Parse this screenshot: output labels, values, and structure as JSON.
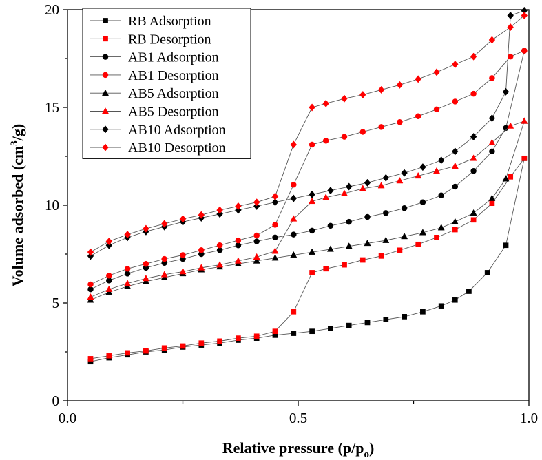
{
  "chart_data": {
    "type": "line",
    "xlabel": "Relative pressure (p/p",
    "xlabel_subscript": "o",
    "xlabel_suffix": ")",
    "ylabel": "Volume adsorbed (cm",
    "ylabel_superscript": "3",
    "ylabel_suffix": "/g)",
    "xlim": [
      0.0,
      1.0
    ],
    "ylim": [
      0,
      20
    ],
    "x_ticks": [
      "0.0",
      "0.5",
      "1.0"
    ],
    "y_ticks": [
      "0",
      "5",
      "10",
      "15",
      "20"
    ],
    "legend_position": "top-left",
    "series": [
      {
        "name": "RB Adsorption",
        "marker": "square",
        "color": "#000000",
        "x": [
          0.05,
          0.09,
          0.13,
          0.17,
          0.21,
          0.25,
          0.29,
          0.33,
          0.37,
          0.41,
          0.45,
          0.49,
          0.53,
          0.57,
          0.61,
          0.65,
          0.69,
          0.73,
          0.77,
          0.81,
          0.84,
          0.87,
          0.91,
          0.95,
          0.99
        ],
        "y": [
          2.0,
          2.2,
          2.35,
          2.5,
          2.6,
          2.75,
          2.85,
          2.95,
          3.1,
          3.2,
          3.35,
          3.45,
          3.55,
          3.7,
          3.85,
          4.0,
          4.15,
          4.3,
          4.55,
          4.85,
          5.15,
          5.6,
          6.55,
          7.95,
          12.4
        ]
      },
      {
        "name": "RB Desorption",
        "marker": "square",
        "color": "#ff0000",
        "x": [
          0.99,
          0.96,
          0.92,
          0.88,
          0.84,
          0.8,
          0.76,
          0.72,
          0.68,
          0.64,
          0.6,
          0.56,
          0.53,
          0.49,
          0.45,
          0.41,
          0.37,
          0.33,
          0.29,
          0.25,
          0.21,
          0.17,
          0.13,
          0.09,
          0.05
        ],
        "y": [
          12.4,
          11.45,
          10.1,
          9.25,
          8.75,
          8.35,
          8.0,
          7.7,
          7.4,
          7.2,
          6.95,
          6.75,
          6.55,
          4.55,
          3.55,
          3.3,
          3.2,
          3.05,
          2.95,
          2.8,
          2.7,
          2.55,
          2.45,
          2.3,
          2.15
        ]
      },
      {
        "name": "AB1 Adsorption",
        "marker": "circle",
        "color": "#000000",
        "x": [
          0.05,
          0.09,
          0.13,
          0.17,
          0.21,
          0.25,
          0.29,
          0.33,
          0.37,
          0.41,
          0.45,
          0.49,
          0.53,
          0.57,
          0.61,
          0.65,
          0.69,
          0.73,
          0.77,
          0.81,
          0.84,
          0.88,
          0.92,
          0.95,
          0.99
        ],
        "y": [
          5.7,
          6.15,
          6.5,
          6.8,
          7.05,
          7.25,
          7.5,
          7.7,
          7.95,
          8.15,
          8.35,
          8.5,
          8.7,
          8.95,
          9.15,
          9.4,
          9.6,
          9.85,
          10.15,
          10.5,
          10.95,
          11.75,
          12.75,
          13.95,
          17.9
        ]
      },
      {
        "name": "AB1 Desorption",
        "marker": "circle",
        "color": "#ff0000",
        "x": [
          0.99,
          0.96,
          0.92,
          0.88,
          0.84,
          0.8,
          0.76,
          0.72,
          0.68,
          0.64,
          0.6,
          0.56,
          0.53,
          0.49,
          0.45,
          0.41,
          0.37,
          0.33,
          0.29,
          0.25,
          0.21,
          0.17,
          0.13,
          0.09,
          0.05
        ],
        "y": [
          17.9,
          17.6,
          16.5,
          15.7,
          15.3,
          14.9,
          14.55,
          14.25,
          14.0,
          13.75,
          13.5,
          13.3,
          13.1,
          11.05,
          9.0,
          8.45,
          8.2,
          7.95,
          7.7,
          7.45,
          7.25,
          7.0,
          6.75,
          6.4,
          5.95
        ]
      },
      {
        "name": "AB5 Adsorption",
        "marker": "triangle",
        "color": "#000000",
        "x": [
          0.05,
          0.09,
          0.13,
          0.17,
          0.21,
          0.25,
          0.29,
          0.33,
          0.37,
          0.41,
          0.45,
          0.49,
          0.53,
          0.57,
          0.61,
          0.65,
          0.69,
          0.73,
          0.77,
          0.81,
          0.84,
          0.88,
          0.92,
          0.95,
          0.99
        ],
        "y": [
          5.15,
          5.55,
          5.85,
          6.1,
          6.3,
          6.5,
          6.7,
          6.85,
          7.0,
          7.15,
          7.3,
          7.45,
          7.6,
          7.75,
          7.9,
          8.05,
          8.2,
          8.4,
          8.6,
          8.85,
          9.15,
          9.6,
          10.35,
          11.35,
          14.3
        ]
      },
      {
        "name": "AB5 Desorption",
        "marker": "triangle",
        "color": "#ff0000",
        "x": [
          0.99,
          0.96,
          0.92,
          0.88,
          0.84,
          0.8,
          0.76,
          0.72,
          0.68,
          0.64,
          0.6,
          0.56,
          0.53,
          0.49,
          0.45,
          0.41,
          0.37,
          0.33,
          0.29,
          0.25,
          0.21,
          0.17,
          0.13,
          0.09,
          0.05
        ],
        "y": [
          14.3,
          14.05,
          13.2,
          12.4,
          12.0,
          11.75,
          11.5,
          11.25,
          11.0,
          10.85,
          10.6,
          10.4,
          10.2,
          9.3,
          7.65,
          7.35,
          7.15,
          6.95,
          6.8,
          6.6,
          6.45,
          6.25,
          6.0,
          5.7,
          5.3
        ]
      },
      {
        "name": "AB10 Adsorption",
        "marker": "diamond",
        "color": "#000000",
        "x": [
          0.05,
          0.09,
          0.13,
          0.17,
          0.21,
          0.25,
          0.29,
          0.33,
          0.37,
          0.41,
          0.45,
          0.49,
          0.53,
          0.57,
          0.61,
          0.65,
          0.69,
          0.73,
          0.77,
          0.81,
          0.84,
          0.88,
          0.92,
          0.95,
          0.96,
          0.99
        ],
        "y": [
          7.4,
          7.95,
          8.35,
          8.65,
          8.9,
          9.15,
          9.35,
          9.55,
          9.75,
          9.95,
          10.15,
          10.35,
          10.55,
          10.75,
          10.95,
          11.15,
          11.4,
          11.65,
          11.95,
          12.3,
          12.75,
          13.5,
          14.45,
          15.8,
          19.7,
          19.95
        ]
      },
      {
        "name": "AB10 Desorption",
        "marker": "diamond",
        "color": "#ff0000",
        "x": [
          0.99,
          0.96,
          0.92,
          0.88,
          0.84,
          0.8,
          0.76,
          0.72,
          0.68,
          0.64,
          0.6,
          0.56,
          0.53,
          0.49,
          0.45,
          0.41,
          0.37,
          0.33,
          0.29,
          0.25,
          0.21,
          0.17,
          0.13,
          0.09,
          0.05
        ],
        "y": [
          19.7,
          19.1,
          18.45,
          17.6,
          17.2,
          16.8,
          16.45,
          16.15,
          15.9,
          15.65,
          15.45,
          15.2,
          15.0,
          13.1,
          10.45,
          10.15,
          9.95,
          9.75,
          9.5,
          9.3,
          9.05,
          8.8,
          8.5,
          8.15,
          7.6
        ]
      }
    ]
  }
}
